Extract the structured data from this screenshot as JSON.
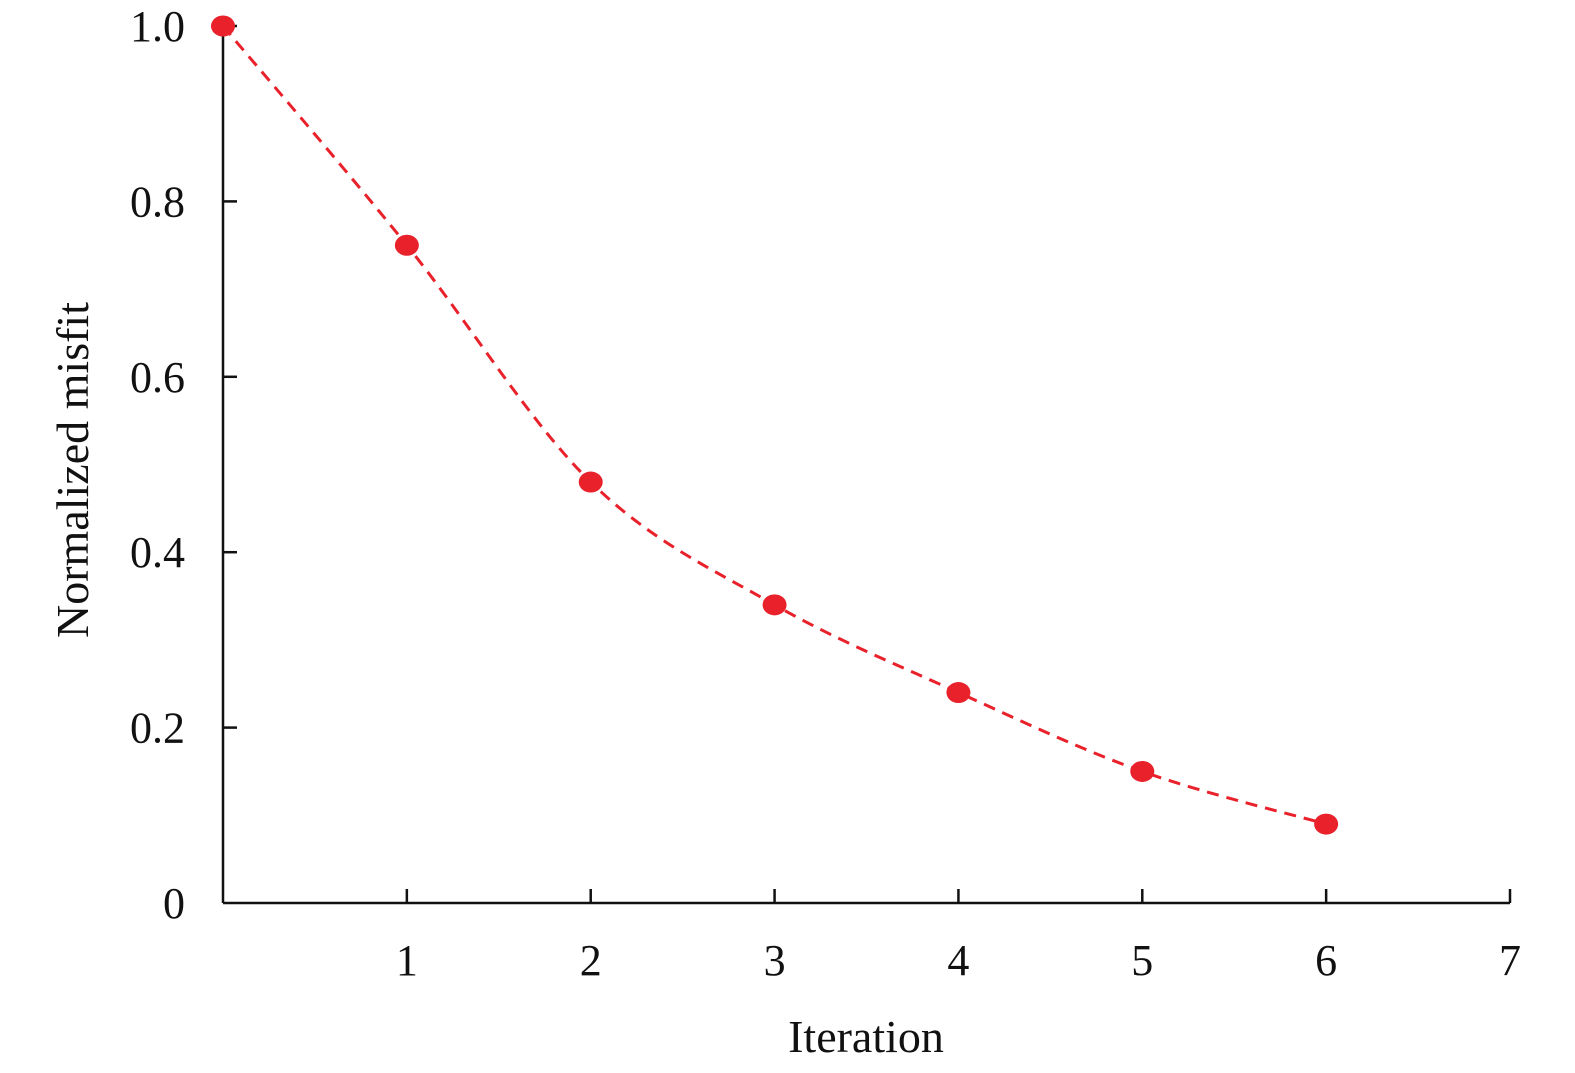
{
  "chart_data": {
    "type": "line",
    "title": "",
    "xlabel": "Iteration",
    "ylabel": "Normalized misfit",
    "xlim": [
      0,
      7
    ],
    "ylim": [
      0,
      1.0
    ],
    "x_ticks": [
      "1",
      "2",
      "3",
      "4",
      "5",
      "6",
      "7"
    ],
    "x_tick_values": [
      1,
      2,
      3,
      4,
      5,
      6,
      7
    ],
    "y_ticks": [
      "0",
      "0.2",
      "0.4",
      "0.6",
      "0.8",
      "1.0"
    ],
    "y_tick_values": [
      0,
      0.2,
      0.4,
      0.6,
      0.8,
      1.0
    ],
    "grid": false,
    "legend": "none",
    "series": [
      {
        "x": [
          0,
          1,
          2,
          3,
          4,
          5,
          6
        ],
        "values": [
          1.0,
          0.75,
          0.48,
          0.34,
          0.24,
          0.15,
          0.09
        ],
        "color": "#e8212b",
        "line_style": "dashed",
        "marker": "circle"
      }
    ]
  }
}
